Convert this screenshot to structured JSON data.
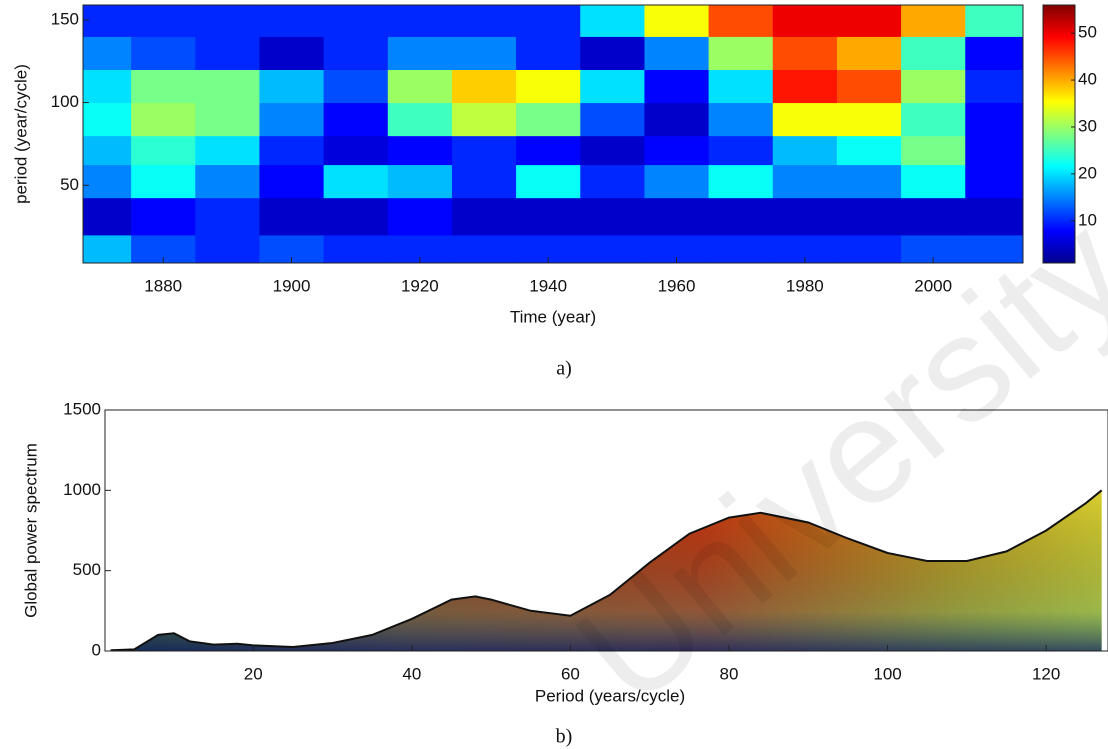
{
  "chart_data": [
    {
      "type": "heatmap",
      "x": [
        1870,
        1880,
        1890,
        1900,
        1910,
        1920,
        1930,
        1940,
        1950,
        1960,
        1970,
        1980,
        1990,
        2000,
        2010
      ],
      "y": [
        10,
        30,
        55,
        70,
        90,
        110,
        130,
        150
      ],
      "z": [
        [
          18,
          12,
          10,
          12,
          10,
          10,
          10,
          10,
          10,
          10,
          10,
          10,
          10,
          12,
          12
        ],
        [
          5,
          8,
          10,
          5,
          5,
          8,
          5,
          5,
          5,
          5,
          5,
          5,
          5,
          5,
          5
        ],
        [
          15,
          22,
          15,
          8,
          20,
          18,
          10,
          22,
          10,
          15,
          22,
          15,
          15,
          22,
          8
        ],
        [
          18,
          24,
          20,
          10,
          6,
          8,
          10,
          8,
          5,
          8,
          10,
          18,
          22,
          28,
          8
        ],
        [
          22,
          30,
          28,
          15,
          8,
          25,
          32,
          28,
          12,
          5,
          15,
          35,
          35,
          25,
          8
        ],
        [
          20,
          28,
          28,
          18,
          12,
          30,
          38,
          35,
          20,
          8,
          20,
          48,
          45,
          30,
          10
        ],
        [
          15,
          12,
          10,
          5,
          10,
          15,
          15,
          10,
          5,
          15,
          30,
          45,
          40,
          25,
          8
        ],
        [
          10,
          10,
          10,
          10,
          10,
          10,
          10,
          10,
          20,
          35,
          45,
          50,
          50,
          40,
          25
        ]
      ],
      "xlim": [
        1867.5,
        2014
      ],
      "ylim": [
        3,
        159
      ],
      "xticks": [
        1880,
        1900,
        1920,
        1940,
        1960,
        1980,
        2000
      ],
      "yticks": [
        50,
        100,
        150
      ],
      "clim": [
        1,
        56
      ],
      "cticks": [
        10,
        20,
        30,
        40,
        50
      ],
      "xlabel": "Time (year)",
      "ylabel": "period (year/cycle)",
      "caption": "a)"
    },
    {
      "type": "area",
      "x": [
        2,
        5,
        8,
        10,
        12,
        15,
        18,
        20,
        25,
        30,
        35,
        40,
        45,
        48,
        50,
        55,
        60,
        65,
        70,
        75,
        80,
        84,
        90,
        95,
        100,
        105,
        110,
        115,
        120,
        125,
        127
      ],
      "values": [
        5,
        10,
        100,
        110,
        60,
        40,
        45,
        35,
        25,
        50,
        100,
        200,
        320,
        340,
        320,
        250,
        220,
        350,
        550,
        730,
        830,
        860,
        800,
        700,
        610,
        560,
        560,
        620,
        750,
        920,
        1000
      ],
      "xlim": [
        1.3,
        127.8
      ],
      "ylim": [
        0,
        1500
      ],
      "xticks": [
        20,
        40,
        60,
        80,
        100,
        120
      ],
      "yticks": [
        0,
        500,
        1000,
        1500
      ],
      "xlabel": "Period (years/cycle)",
      "ylabel": "Global power spectrum",
      "caption": "b)"
    }
  ],
  "watermark": "University"
}
